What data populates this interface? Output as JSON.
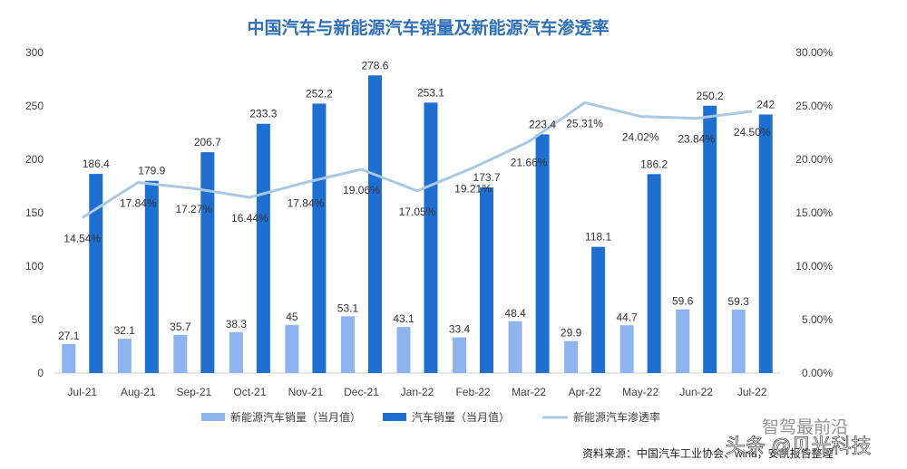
{
  "chart_data": {
    "type": "bar",
    "title": "中国汽车与新能源汽车销量及新能源汽车渗透率",
    "categories": [
      "Jul-21",
      "Aug-21",
      "Sep-21",
      "Oct-21",
      "Nov-21",
      "Dec-21",
      "Jan-22",
      "Feb-22",
      "Mar-22",
      "Apr-22",
      "May-22",
      "Jun-22",
      "Jul-22"
    ],
    "series": [
      {
        "name": "新能源汽车销量（当月值）",
        "type": "bar",
        "axis": "left",
        "color": "#8db4ee",
        "values": [
          27.1,
          32.1,
          35.7,
          38.3,
          45,
          53.1,
          43.1,
          33.4,
          48.4,
          29.9,
          44.7,
          59.6,
          59.3
        ],
        "labels": [
          "27.1",
          "32.1",
          "35.7",
          "38.3",
          "45",
          "53.1",
          "43.1",
          "33.4",
          "48.4",
          "29.9",
          "44.7",
          "59.6",
          "59.3"
        ]
      },
      {
        "name": "汽车销量（当月值）",
        "type": "bar",
        "axis": "left",
        "color": "#1f6fd1",
        "values": [
          186.4,
          179.9,
          206.7,
          233.3,
          252.2,
          278.6,
          253.1,
          173.7,
          223.4,
          118.1,
          186.2,
          250.2,
          242
        ],
        "labels": [
          "186.4",
          "179.9",
          "206.7",
          "233.3",
          "252.2",
          "278.6",
          "253.1",
          "173.7",
          "223.4",
          "118.1",
          "186.2",
          "250.2",
          "242"
        ]
      },
      {
        "name": "新能源汽车渗透率",
        "type": "line",
        "axis": "right",
        "color": "#a9c8e2",
        "values": [
          14.54,
          17.84,
          17.27,
          16.44,
          17.84,
          19.06,
          17.05,
          19.21,
          21.66,
          25.31,
          24.02,
          23.84,
          24.5
        ],
        "labels": [
          "14.54%",
          "17.84%",
          "17.27%",
          "16.44%",
          "17.84%",
          "19.06%",
          "17.05%",
          "19.21%",
          "21.66%",
          "25.31%",
          "24.02%",
          "23.84%",
          "24.50%"
        ]
      }
    ],
    "ylim_left": [
      0,
      300
    ],
    "yticks_left": [
      "0",
      "50",
      "100",
      "150",
      "200",
      "250",
      "300"
    ],
    "ylim_right": [
      0,
      30
    ],
    "yticks_right": [
      "0.00%",
      "5.00%",
      "10.00%",
      "15.00%",
      "20.00%",
      "25.00%",
      "30.00%"
    ],
    "grid": false,
    "legend_position": "bottom"
  },
  "source": "资料来源：中国汽车工业协会、wind，安凯报告整理",
  "watermark": {
    "wechat": "智驾最前沿",
    "toutiao": "头条 @贝光科技"
  }
}
